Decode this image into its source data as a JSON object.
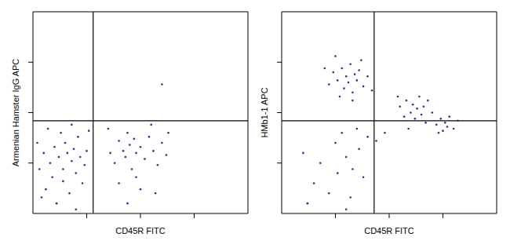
{
  "chart_data": [
    {
      "type": "scatter",
      "x_label": "CD45R FITC",
      "y_label": "Armenian Hamster IgG APC",
      "xlim": [
        0,
        100
      ],
      "ylim": [
        0,
        100
      ],
      "xticks": [
        25,
        50,
        75
      ],
      "yticks": [
        25,
        50,
        75
      ],
      "tick_labels": false,
      "color": "#2b2f8f",
      "marker": "dot",
      "reference_lines": {
        "x": 28,
        "y": 46
      },
      "x": [
        5,
        8,
        10,
        12,
        14,
        15,
        16,
        18,
        19,
        20,
        21,
        22,
        24,
        25,
        13,
        9,
        6,
        17,
        23,
        11,
        3,
        2,
        26,
        18,
        14,
        20,
        7,
        4,
        36,
        38,
        40,
        42,
        43,
        44,
        45,
        46,
        47,
        48,
        50,
        52,
        54,
        56,
        58,
        60,
        62,
        40,
        50,
        44,
        55,
        35,
        63,
        48,
        57,
        60
      ],
      "values": [
        30,
        25,
        33,
        28,
        22,
        35,
        30,
        26,
        32,
        20,
        38,
        28,
        24,
        31,
        40,
        18,
        12,
        10,
        15,
        5,
        22,
        35,
        41,
        44,
        16,
        2,
        42,
        8,
        30,
        25,
        36,
        31,
        28,
        40,
        34,
        22,
        37,
        30,
        33,
        27,
        38,
        31,
        24,
        35,
        29,
        15,
        12,
        5,
        44,
        42,
        40,
        18,
        10,
        64
      ]
    },
    {
      "type": "scatter",
      "x_label": "CD45R FITC",
      "y_label": "HMb1-1 APC",
      "xlim": [
        0,
        100
      ],
      "ylim": [
        0,
        100
      ],
      "xticks": [
        25,
        50,
        75
      ],
      "yticks": [
        25,
        50,
        75
      ],
      "tick_labels": false,
      "color": "#2b2f8f",
      "marker": "dot",
      "reference_lines": {
        "x": 43,
        "y": 46
      },
      "x": [
        22,
        24,
        26,
        28,
        29,
        30,
        31,
        32,
        33,
        34,
        35,
        36,
        38,
        40,
        27,
        20,
        42,
        37,
        25,
        33,
        55,
        57,
        58,
        60,
        61,
        62,
        63,
        64,
        65,
        66,
        67,
        68,
        70,
        59,
        54,
        72,
        74,
        75,
        76,
        77,
        78,
        80,
        82,
        73,
        10,
        18,
        25,
        30,
        33,
        28,
        36,
        15,
        22,
        32,
        38,
        40,
        26,
        35,
        12,
        30,
        44,
        48
      ],
      "values": [
        64,
        70,
        66,
        72,
        62,
        68,
        65,
        74,
        60,
        69,
        66,
        71,
        63,
        68,
        58,
        72,
        61,
        76,
        78,
        56,
        53,
        48,
        56,
        50,
        54,
        47,
        52,
        58,
        49,
        53,
        45,
        56,
        50,
        42,
        58,
        44,
        47,
        41,
        45,
        43,
        48,
        42,
        46,
        40,
        30,
        25,
        35,
        28,
        22,
        40,
        32,
        15,
        10,
        8,
        18,
        38,
        20,
        42,
        5,
        2,
        36,
        40
      ]
    }
  ]
}
